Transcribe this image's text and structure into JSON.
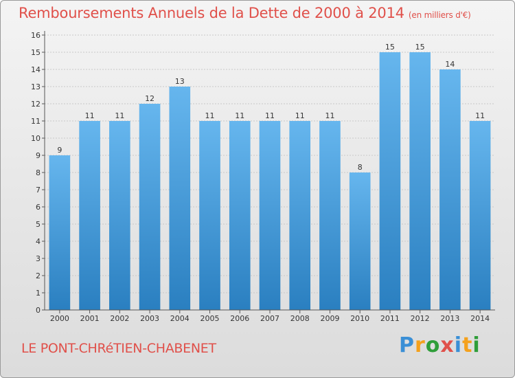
{
  "header": {
    "title": "Remboursements Annuels de la Dette de 2000 à 2014",
    "unit": "(en milliers d'€)"
  },
  "footer": {
    "commune": "LE PONT-CHRéTIEN-CHABENET",
    "brand_letters": [
      "P",
      "r",
      "o",
      "x",
      "i",
      "t",
      "i"
    ],
    "brand_colors": [
      "#3a8fd6",
      "#f4a11d",
      "#2f9e3a",
      "#e0504a",
      "#3a8fd6",
      "#f4a11d",
      "#2f9e3a"
    ]
  },
  "colors": {
    "bar_top": "#66b6ee",
    "bar_bottom": "#2a7fc0",
    "grid": "#c8c8c8",
    "axis": "#555555"
  },
  "chart_data": {
    "type": "bar",
    "title": "Remboursements Annuels de la Dette de 2000 à 2014",
    "xlabel": "",
    "ylabel": "",
    "categories": [
      "2000",
      "2001",
      "2002",
      "2003",
      "2004",
      "2005",
      "2006",
      "2007",
      "2008",
      "2009",
      "2010",
      "2011",
      "2012",
      "2013",
      "2014"
    ],
    "values": [
      9,
      11,
      11,
      12,
      13,
      11,
      11,
      11,
      11,
      11,
      8,
      15,
      15,
      14,
      11
    ],
    "ylim": [
      0,
      16
    ],
    "yticks": [
      "0",
      "1",
      "2",
      "3",
      "4",
      "5",
      "6",
      "7",
      "8",
      "9",
      "10",
      "11",
      "12",
      "13",
      "14",
      "15",
      "16"
    ],
    "grid": true
  }
}
